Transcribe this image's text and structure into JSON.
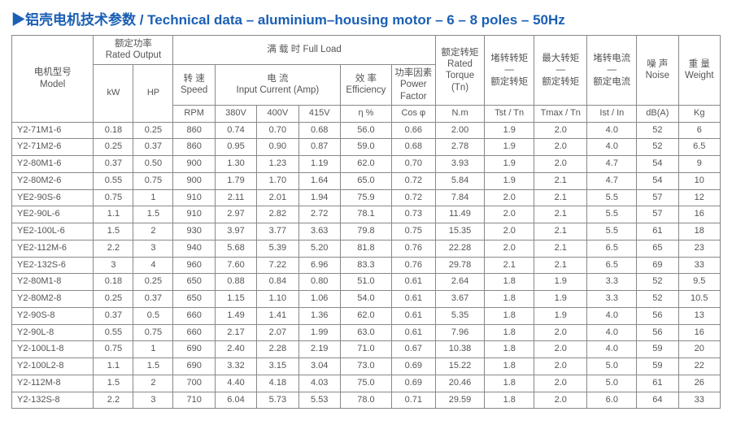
{
  "title": "▶铝壳电机技术参数 / Technical data – aluminium–housing motor – 6 – 8 poles – 50Hz",
  "headers": {
    "model": "电机型号\nModel",
    "ratedOutput": "额定功率\nRated Output",
    "fullLoad": "满 载 时     Full Load",
    "speed": "转 速\nSpeed",
    "input": "电 流\nInput  Current (Amp)",
    "eff": "效 率\nEfficiency",
    "pf": "功率因素\nPower\nFactor",
    "torque": "额定转矩\nRated\nTorque\n(Tn)",
    "tst": "堵转转矩\n—\n额定转矩",
    "tmax": "最大转矩\n—\n额定转矩",
    "ist": "堵转电流\n—\n额定电流",
    "noise": "噪 声\nNoise",
    "weight": "重 量\nWeight",
    "kw": "kW",
    "hp": "HP",
    "rpm": "RPM",
    "v380": "380V",
    "v400": "400V",
    "v415": "415V",
    "eta": "η %",
    "cos": "Cos φ",
    "nm": "N.m",
    "tsttn": "Tst / Tn",
    "tmaxtn": "Tmax / Tn",
    "istin": "Ist / In",
    "dba": "dB(A)",
    "kg": "Kg"
  },
  "rows": [
    [
      "Y2-71M1-6",
      "0.18",
      "0.25",
      "860",
      "0.74",
      "0.70",
      "0.68",
      "56.0",
      "0.66",
      "2.00",
      "1.9",
      "2.0",
      "4.0",
      "52",
      "6"
    ],
    [
      "Y2-71M2-6",
      "0.25",
      "0.37",
      "860",
      "0.95",
      "0.90",
      "0.87",
      "59.0",
      "0.68",
      "2.78",
      "1.9",
      "2.0",
      "4.0",
      "52",
      "6.5"
    ],
    [
      "Y2-80M1-6",
      "0.37",
      "0.50",
      "900",
      "1.30",
      "1.23",
      "1.19",
      "62.0",
      "0.70",
      "3.93",
      "1.9",
      "2.0",
      "4.7",
      "54",
      "9"
    ],
    [
      "Y2-80M2-6",
      "0.55",
      "0.75",
      "900",
      "1.79",
      "1.70",
      "1.64",
      "65.0",
      "0.72",
      "5.84",
      "1.9",
      "2.1",
      "4.7",
      "54",
      "10"
    ],
    [
      "YE2-90S-6",
      "0.75",
      "1",
      "910",
      "2.11",
      "2.01",
      "1.94",
      "75.9",
      "0.72",
      "7.84",
      "2.0",
      "2.1",
      "5.5",
      "57",
      "12"
    ],
    [
      "YE2-90L-6",
      "1.1",
      "1.5",
      "910",
      "2.97",
      "2.82",
      "2.72",
      "78.1",
      "0.73",
      "11.49",
      "2.0",
      "2.1",
      "5.5",
      "57",
      "16"
    ],
    [
      "YE2-100L-6",
      "1.5",
      "2",
      "930",
      "3.97",
      "3.77",
      "3.63",
      "79.8",
      "0.75",
      "15.35",
      "2.0",
      "2.1",
      "5.5",
      "61",
      "18"
    ],
    [
      "YE2-112M-6",
      "2.2",
      "3",
      "940",
      "5.68",
      "5.39",
      "5.20",
      "81.8",
      "0.76",
      "22.28",
      "2.0",
      "2.1",
      "6.5",
      "65",
      "23"
    ],
    [
      "YE2-132S-6",
      "3",
      "4",
      "960",
      "7.60",
      "7.22",
      "6.96",
      "83.3",
      "0.76",
      "29.78",
      "2.1",
      "2.1",
      "6.5",
      "69",
      "33"
    ],
    [
      "Y2-80M1-8",
      "0.18",
      "0.25",
      "650",
      "0.88",
      "0.84",
      "0.80",
      "51.0",
      "0.61",
      "2.64",
      "1.8",
      "1.9",
      "3.3",
      "52",
      "9.5"
    ],
    [
      "Y2-80M2-8",
      "0.25",
      "0.37",
      "650",
      "1.15",
      "1.10",
      "1.06",
      "54.0",
      "0.61",
      "3.67",
      "1.8",
      "1.9",
      "3.3",
      "52",
      "10.5"
    ],
    [
      "Y2-90S-8",
      "0.37",
      "0.5",
      "660",
      "1.49",
      "1.41",
      "1.36",
      "62.0",
      "0.61",
      "5.35",
      "1.8",
      "1.9",
      "4.0",
      "56",
      "13"
    ],
    [
      "Y2-90L-8",
      "0.55",
      "0.75",
      "660",
      "2.17",
      "2.07",
      "1.99",
      "63.0",
      "0.61",
      "7.96",
      "1.8",
      "2.0",
      "4.0",
      "56",
      "16"
    ],
    [
      "Y2-100L1-8",
      "0.75",
      "1",
      "690",
      "2.40",
      "2.28",
      "2.19",
      "71.0",
      "0.67",
      "10.38",
      "1.8",
      "2.0",
      "4.0",
      "59",
      "20"
    ],
    [
      "Y2-100L2-8",
      "1.1",
      "1.5",
      "690",
      "3.32",
      "3.15",
      "3.04",
      "73.0",
      "0.69",
      "15.22",
      "1.8",
      "2.0",
      "5.0",
      "59",
      "22"
    ],
    [
      "Y2-112M-8",
      "1.5",
      "2",
      "700",
      "4.40",
      "4.18",
      "4.03",
      "75.0",
      "0.69",
      "20.46",
      "1.8",
      "2.0",
      "5.0",
      "61",
      "26"
    ],
    [
      "Y2-132S-8",
      "2.2",
      "3",
      "710",
      "6.04",
      "5.73",
      "5.53",
      "78.0",
      "0.71",
      "29.59",
      "1.8",
      "2.0",
      "6.0",
      "64",
      "33"
    ]
  ]
}
